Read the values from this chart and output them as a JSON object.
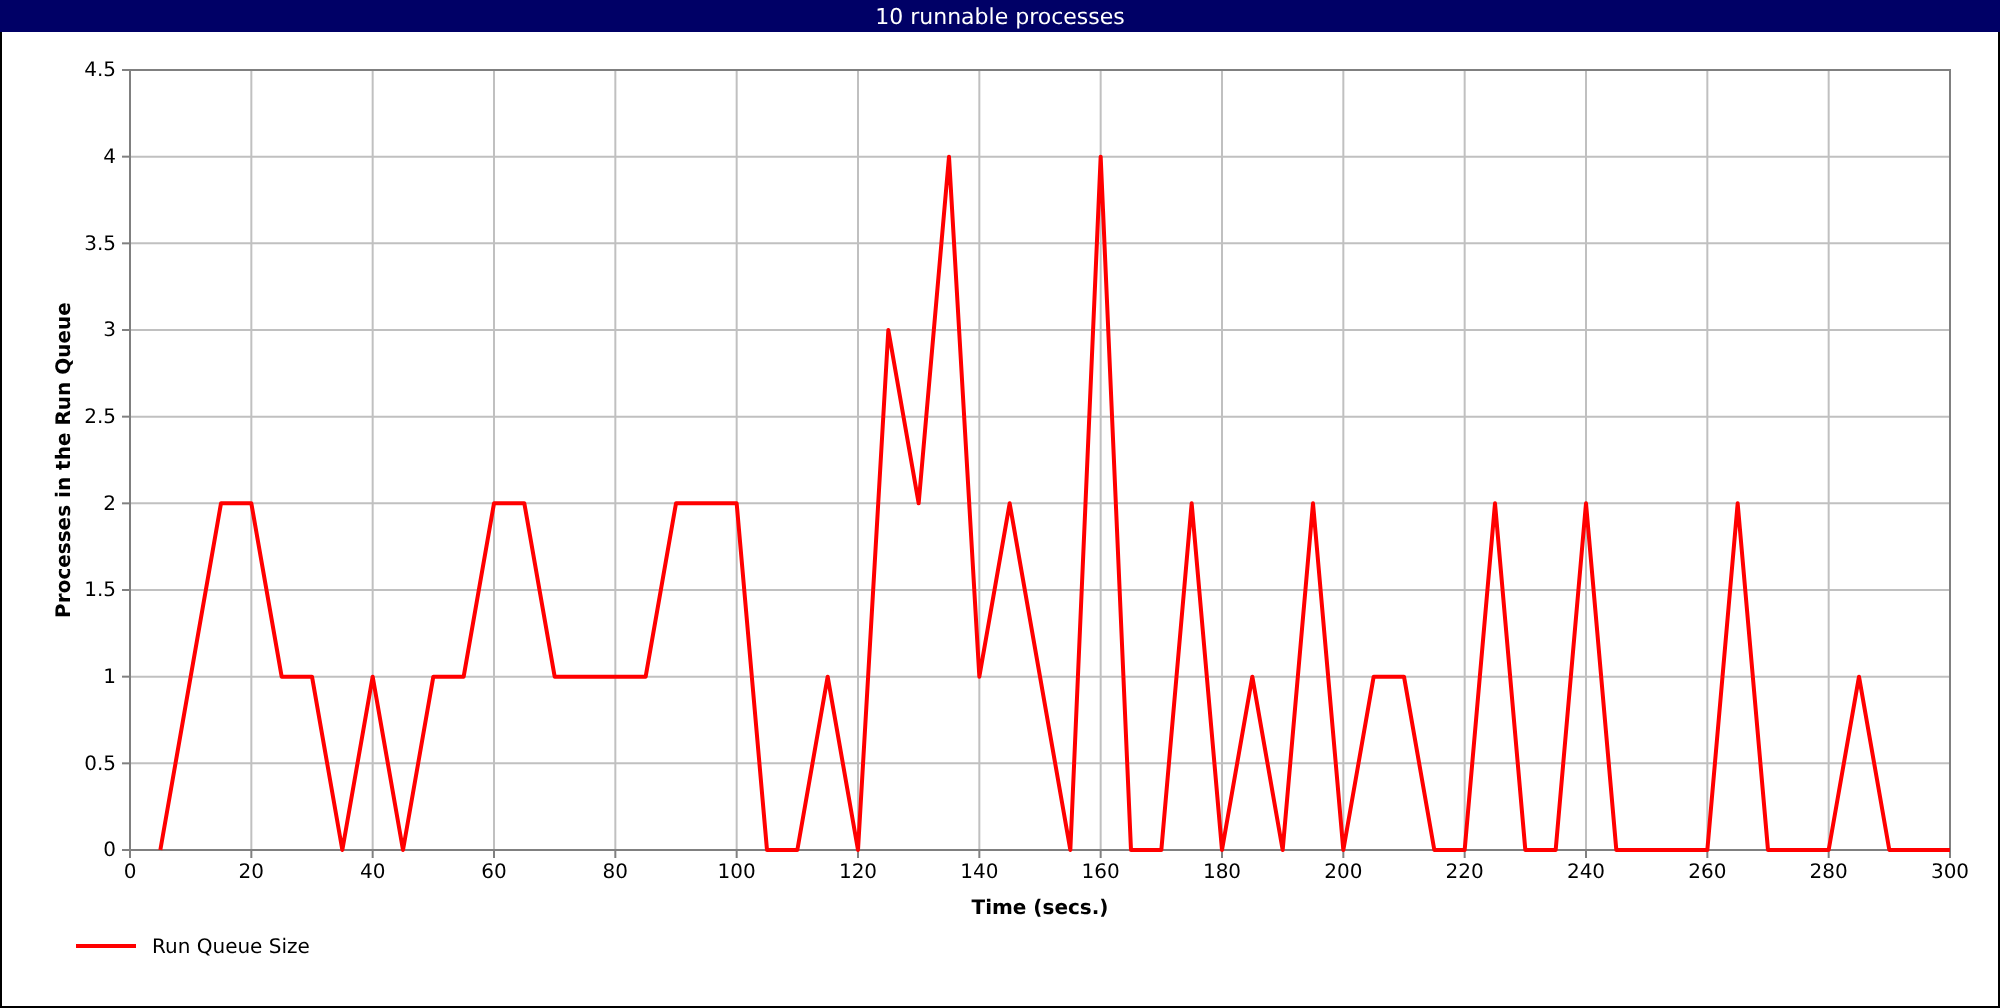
{
  "chart_data": {
    "type": "line",
    "title": "10 runnable processes",
    "xlabel": "Time (secs.)",
    "ylabel": "Processes in the Run Queue",
    "x": [
      5,
      15,
      20,
      25,
      30,
      35,
      40,
      45,
      50,
      55,
      60,
      65,
      70,
      75,
      80,
      85,
      90,
      95,
      100,
      105,
      110,
      115,
      120,
      125,
      130,
      135,
      140,
      145,
      150,
      155,
      160,
      165,
      170,
      175,
      180,
      185,
      190,
      195,
      200,
      205,
      210,
      215,
      220,
      225,
      230,
      235,
      240,
      245,
      250,
      255,
      260,
      265,
      270,
      275,
      280,
      285,
      290,
      295,
      300
    ],
    "series": [
      {
        "name": "Run Queue Size",
        "color": "#ff0000",
        "values": [
          0,
          2,
          2,
          1,
          1,
          0,
          1,
          0,
          1,
          1,
          2,
          2,
          1,
          1,
          1,
          1,
          2,
          2,
          2,
          0,
          0,
          1,
          0,
          3,
          2,
          4,
          1,
          2,
          1,
          0,
          4,
          0,
          0,
          2,
          0,
          1,
          0,
          2,
          0,
          1,
          1,
          0,
          0,
          2,
          0,
          0,
          2,
          0,
          0,
          0,
          0,
          2,
          0,
          0,
          0,
          1,
          0,
          0,
          0
        ]
      }
    ],
    "xlim": [
      0,
      300
    ],
    "xticks": [
      0,
      20,
      40,
      60,
      80,
      100,
      120,
      140,
      160,
      180,
      200,
      220,
      240,
      260,
      280,
      300
    ],
    "ylim": [
      0,
      4.5
    ],
    "yticks": [
      0,
      0.5,
      1,
      1.5,
      2,
      2.5,
      3,
      3.5,
      4,
      4.5
    ],
    "grid": true,
    "legend": "bottom left",
    "marker": "none",
    "line_style": "solid"
  }
}
